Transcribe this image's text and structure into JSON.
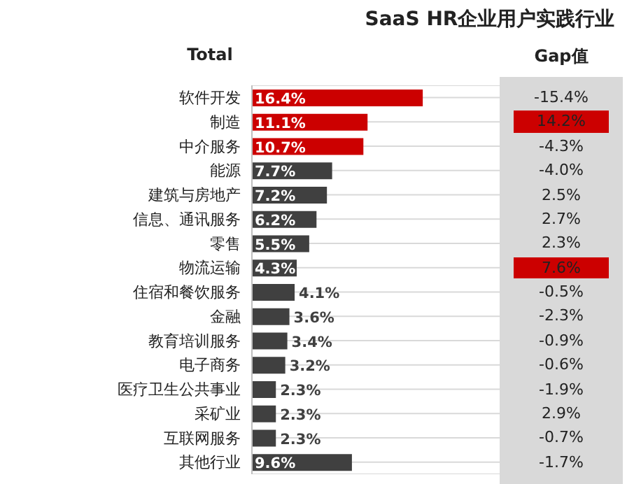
{
  "chart_data": [
    {
      "type": "bar",
      "orientation": "horizontal",
      "title": "SaaS HR企业用户实践行业",
      "subtitle": "Total",
      "grid": "y",
      "categories": [
        "软件开发",
        "制造",
        "中介服务",
        "能源",
        "建筑与房地产",
        "信息、通讯服务",
        "零售",
        "物流运输",
        "住宿和餐饮服务",
        "金融",
        "教育培训服务",
        "电子商务",
        "医疗卫生公共事业",
        "采矿业",
        "互联网服务",
        "其他行业"
      ],
      "values": [
        16.4,
        11.1,
        10.7,
        7.7,
        7.2,
        6.2,
        5.5,
        4.3,
        4.1,
        3.6,
        3.4,
        3.2,
        2.3,
        2.3,
        2.3,
        9.6
      ],
      "colors": [
        "#cc0000",
        "#cc0000",
        "#cc0000",
        "#404040",
        "#404040",
        "#404040",
        "#404040",
        "#404040",
        "#404040",
        "#404040",
        "#404040",
        "#404040",
        "#404040",
        "#404040",
        "#404040",
        "#404040"
      ],
      "value_labels": [
        "16.4%",
        "11.1%",
        "10.7%",
        "7.7%",
        "7.2%",
        "6.2%",
        "5.5%",
        "4.3%",
        "4.1%",
        "3.6%",
        "3.4%",
        "3.2%",
        "2.3%",
        "2.3%",
        "2.3%",
        "9.6%"
      ]
    },
    {
      "type": "other",
      "title": "Gap值",
      "values": [
        -15.4,
        14.2,
        -4.3,
        -4.0,
        2.5,
        2.7,
        2.3,
        7.6,
        -0.5,
        -2.3,
        -0.9,
        -0.6,
        -1.9,
        2.9,
        -0.7,
        -1.7
      ],
      "value_labels": [
        "-15.4%",
        "14.2%",
        "-4.3%",
        "-4.0%",
        "2.5%",
        "2.7%",
        "2.3%",
        "7.6%",
        "-0.5%",
        "-2.3%",
        "-0.9%",
        "-0.6%",
        "-1.9%",
        "2.9%",
        "-0.7%",
        "-1.7%"
      ],
      "colors": [
        null,
        "#cc0000",
        null,
        null,
        null,
        null,
        null,
        "#cc0000",
        null,
        null,
        null,
        null,
        null,
        null,
        null,
        null
      ]
    }
  ]
}
